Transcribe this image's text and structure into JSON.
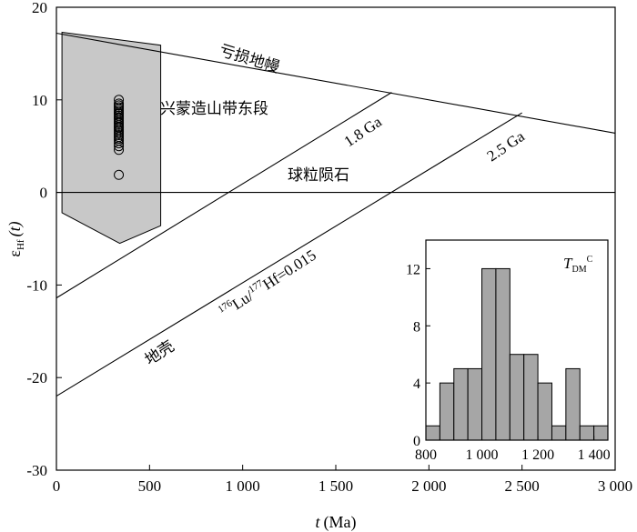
{
  "chart_data": {
    "type": "line",
    "xlabel_italic": "t",
    "xlabel_unit": "(Ma)",
    "ylabel_main": "ε",
    "ylabel_sub": "Hf",
    "ylabel_paren": "(t)",
    "xlim": [
      0,
      3000
    ],
    "ylim": [
      -30,
      20
    ],
    "x_ticks": [
      0,
      500,
      1000,
      1500,
      2000,
      2500,
      3000
    ],
    "x_tick_labels": [
      "0",
      "500",
      "1 000",
      "1 500",
      "2 000",
      "2 500",
      "3 000"
    ],
    "y_ticks": [
      -30,
      -20,
      -10,
      0,
      10,
      20
    ],
    "y_tick_labels": [
      "-30",
      "-20",
      "-10",
      "0",
      "10",
      "20"
    ],
    "lines": [
      {
        "label": "亏损地幔",
        "points": [
          [
            0,
            17.2
          ],
          [
            3000,
            6.4
          ]
        ]
      },
      {
        "label": "球粒陨石",
        "points": [
          [
            0,
            0
          ],
          [
            3000,
            0
          ]
        ]
      },
      {
        "label": "1.8 Ga",
        "points": [
          [
            0,
            -11.4
          ],
          [
            1800,
            10.8
          ]
        ]
      },
      {
        "label": "2.5 Ga",
        "points": [
          [
            0,
            -22.0
          ],
          [
            2500,
            8.6
          ]
        ]
      }
    ],
    "region": {
      "label": "兴蒙造山带东段",
      "polygon": [
        [
          30,
          17.3
        ],
        [
          560,
          15.9
        ],
        [
          560,
          -3.6
        ],
        [
          340,
          -5.5
        ],
        [
          30,
          -2.2
        ]
      ]
    },
    "samples": {
      "x": 335,
      "y": [
        10.0,
        9.6,
        9.4,
        9.2,
        9.0,
        8.8,
        8.6,
        8.5,
        8.3,
        8.1,
        8.0,
        7.8,
        7.6,
        7.5,
        7.3,
        7.1,
        7.0,
        6.8,
        6.6,
        6.4,
        6.2,
        6.0,
        5.8,
        5.6,
        5.3,
        5.0,
        4.6,
        1.9
      ]
    },
    "annotations": {
      "dm": "亏损地幔",
      "chur": "球粒陨石",
      "ga18": "1.8 Ga",
      "ga25": "2.5 Ga",
      "region": "兴蒙造山带东段",
      "crust": "地壳",
      "ratio_sup1": "176",
      "ratio_lu": "Lu/",
      "ratio_sup2": "177",
      "ratio_hf": "Hf=0.015"
    },
    "inset": {
      "type": "bar",
      "title_main": "T",
      "title_sub": "DM",
      "title_sup": "C",
      "bin_width": 50,
      "bins_start": [
        800,
        850,
        900,
        950,
        1000,
        1050,
        1100,
        1150,
        1200,
        1250,
        1300,
        1350,
        1400
      ],
      "counts": [
        1,
        4,
        5,
        5,
        12,
        12,
        6,
        6,
        4,
        1,
        5,
        1,
        1
      ],
      "xlim": [
        800,
        1450
      ],
      "ylim": [
        0,
        14
      ],
      "x_ticks": [
        800,
        1000,
        1200,
        1400
      ],
      "x_tick_labels": [
        "800",
        "1 000",
        "1 200",
        "1 400"
      ],
      "y_ticks": [
        0,
        4,
        8,
        12
      ],
      "y_tick_labels": [
        "0",
        "4",
        "8",
        "12"
      ]
    }
  }
}
